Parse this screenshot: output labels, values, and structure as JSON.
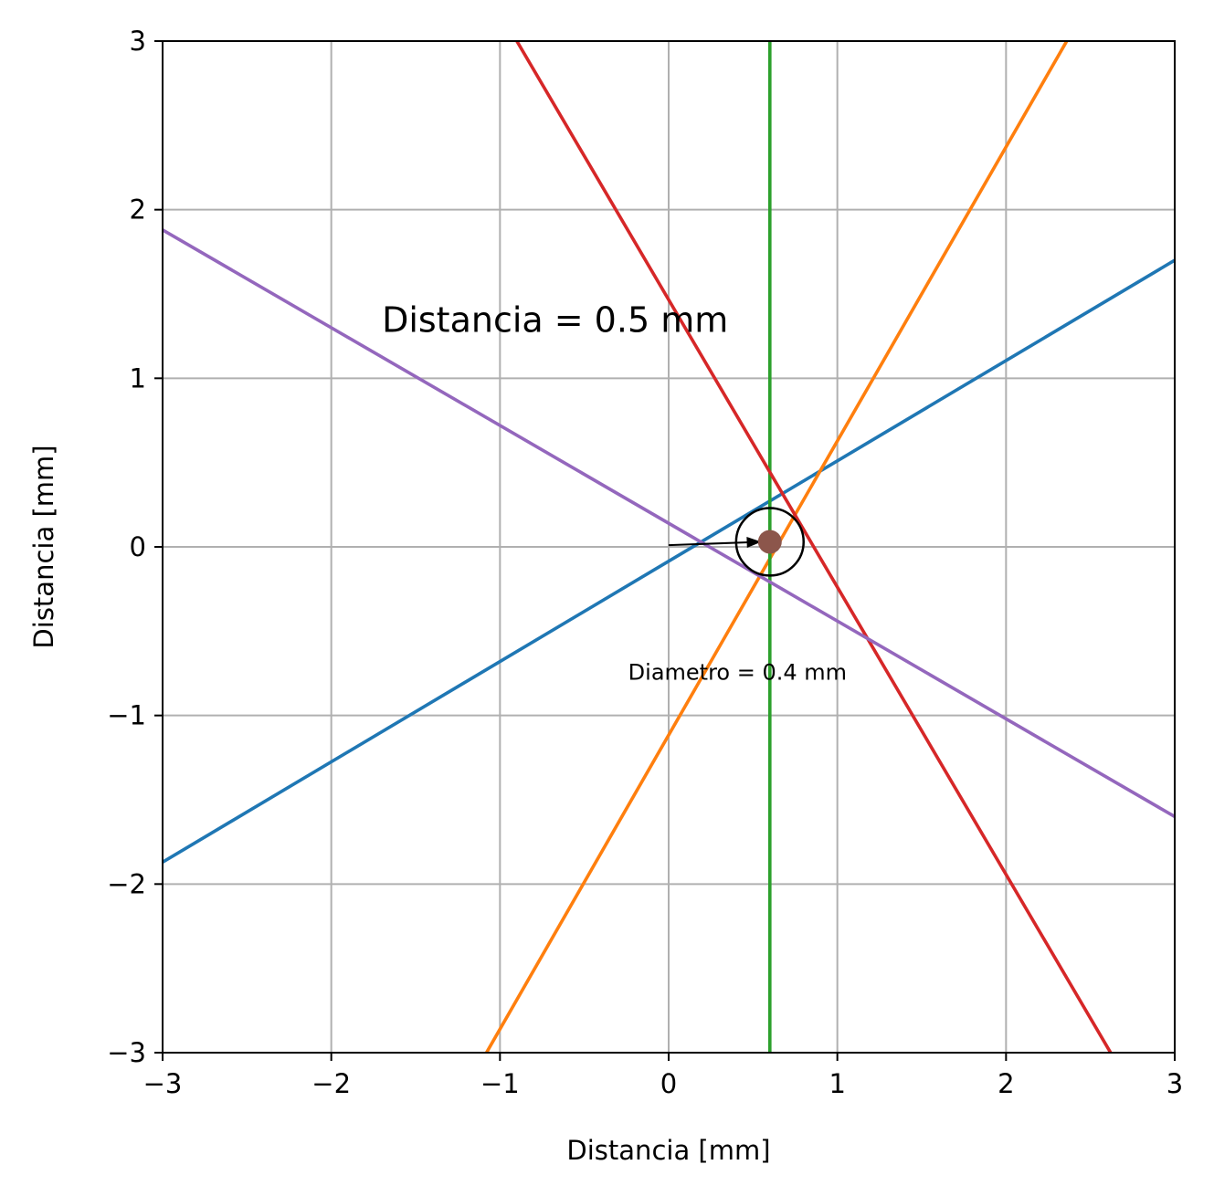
{
  "chart_data": {
    "type": "line",
    "xlabel": "Distancia [mm]",
    "ylabel": "Distancia [mm]",
    "xlim": [
      -3,
      3
    ],
    "ylim": [
      -3,
      3
    ],
    "xticks": [
      -3,
      -2,
      -1,
      0,
      1,
      2,
      3
    ],
    "yticks": [
      -3,
      -2,
      -1,
      0,
      1,
      2,
      3
    ],
    "xtick_labels": [
      "−3",
      "−2",
      "−1",
      "0",
      "1",
      "2",
      "3"
    ],
    "ytick_labels": [
      "−3",
      "−2",
      "−1",
      "0",
      "1",
      "2",
      "3"
    ],
    "grid": true,
    "series": [
      {
        "color": "#1f77b4",
        "x": [
          -3,
          3
        ],
        "y": [
          -1.87,
          1.7
        ]
      },
      {
        "color": "#ff7f0e",
        "x": [
          -1.08,
          2.36
        ],
        "y": [
          -3,
          3
        ]
      },
      {
        "color": "#2ca02c",
        "x": [
          0.6,
          0.6
        ],
        "y": [
          -3,
          3
        ]
      },
      {
        "color": "#d62728",
        "x": [
          -0.9,
          2.62
        ],
        "y": [
          3,
          -3
        ]
      },
      {
        "color": "#9467bd",
        "x": [
          -3,
          3
        ],
        "y": [
          1.88,
          -1.6
        ]
      }
    ],
    "marker": {
      "x": 0.6,
      "y": 0.03,
      "color": "#8c564b"
    },
    "circle": {
      "x": 0.6,
      "y": 0.03,
      "diameter": 0.4,
      "color": "#000000"
    },
    "arrow": {
      "x1": 0.0,
      "y1": 0.01,
      "x2": 0.55,
      "y2": 0.03,
      "color": "#000000"
    },
    "annotations": [
      {
        "text": "Distancia = 0.5 mm",
        "x": -1.7,
        "y": 1.35,
        "size": "large"
      },
      {
        "text": "Diametro = 0.4 mm",
        "x": -0.24,
        "y": -0.74,
        "size": "small"
      }
    ]
  }
}
